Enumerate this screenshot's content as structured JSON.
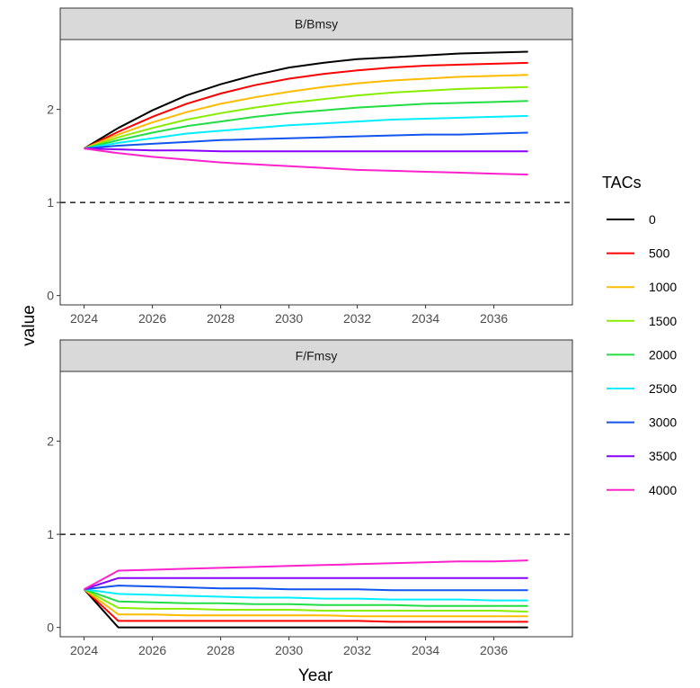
{
  "chart_data": {
    "type": "line",
    "xlabel": "Year",
    "ylabel": "value",
    "legend_title": "TACs",
    "legend_placement": "right",
    "xlim": [
      2023.3,
      2038.3
    ],
    "ylim": [
      -0.1,
      2.75
    ],
    "x_ticks": [
      "2024",
      "2026",
      "2028",
      "2030",
      "2032",
      "2034",
      "2036"
    ],
    "y_ticks": [
      "0",
      "1",
      "2"
    ],
    "x": [
      2024,
      2025,
      2026,
      2027,
      2028,
      2029,
      2030,
      2031,
      2032,
      2033,
      2034,
      2035,
      2036,
      2037
    ],
    "reference_line": 1,
    "panels": [
      {
        "title": "B/Bmsy",
        "series": [
          {
            "name": "0",
            "color": "#000000",
            "values": [
              1.58,
              1.8,
              1.99,
              2.15,
              2.27,
              2.37,
              2.45,
              2.5,
              2.54,
              2.56,
              2.58,
              2.6,
              2.61,
              2.62
            ]
          },
          {
            "name": "500",
            "color": "#ff0000",
            "values": [
              1.58,
              1.76,
              1.92,
              2.06,
              2.17,
              2.26,
              2.33,
              2.38,
              2.42,
              2.45,
              2.47,
              2.48,
              2.49,
              2.5
            ]
          },
          {
            "name": "1000",
            "color": "#ffbb00",
            "values": [
              1.58,
              1.73,
              1.86,
              1.97,
              2.06,
              2.13,
              2.19,
              2.24,
              2.28,
              2.31,
              2.33,
              2.35,
              2.36,
              2.37
            ]
          },
          {
            "name": "1500",
            "color": "#88ee00",
            "values": [
              1.58,
              1.7,
              1.8,
              1.89,
              1.96,
              2.02,
              2.07,
              2.11,
              2.15,
              2.18,
              2.2,
              2.22,
              2.23,
              2.24
            ]
          },
          {
            "name": "2000",
            "color": "#22dd44",
            "values": [
              1.58,
              1.67,
              1.75,
              1.82,
              1.87,
              1.92,
              1.96,
              1.99,
              2.02,
              2.04,
              2.06,
              2.07,
              2.08,
              2.09
            ]
          },
          {
            "name": "2500",
            "color": "#00eeff",
            "values": [
              1.58,
              1.64,
              1.69,
              1.74,
              1.77,
              1.8,
              1.83,
              1.85,
              1.87,
              1.89,
              1.9,
              1.91,
              1.92,
              1.93
            ]
          },
          {
            "name": "3000",
            "color": "#1155ee",
            "values": [
              1.58,
              1.61,
              1.63,
              1.65,
              1.67,
              1.68,
              1.69,
              1.7,
              1.71,
              1.72,
              1.73,
              1.73,
              1.74,
              1.75
            ]
          },
          {
            "name": "3500",
            "color": "#8800ff",
            "values": [
              1.58,
              1.57,
              1.56,
              1.56,
              1.55,
              1.55,
              1.55,
              1.55,
              1.55,
              1.55,
              1.55,
              1.55,
              1.55,
              1.55
            ]
          },
          {
            "name": "4000",
            "color": "#ff22cc",
            "values": [
              1.58,
              1.53,
              1.49,
              1.46,
              1.43,
              1.41,
              1.39,
              1.37,
              1.35,
              1.34,
              1.33,
              1.32,
              1.31,
              1.3
            ]
          }
        ]
      },
      {
        "title": "F/Fmsy",
        "series": [
          {
            "name": "0",
            "color": "#000000",
            "values": [
              0.41,
              0.0,
              0.0,
              0.0,
              0.0,
              0.0,
              0.0,
              0.0,
              0.0,
              0.0,
              0.0,
              0.0,
              0.0,
              0.0
            ]
          },
          {
            "name": "500",
            "color": "#ff0000",
            "values": [
              0.41,
              0.07,
              0.07,
              0.07,
              0.07,
              0.07,
              0.07,
              0.07,
              0.07,
              0.06,
              0.06,
              0.06,
              0.06,
              0.06
            ]
          },
          {
            "name": "1000",
            "color": "#ffbb00",
            "values": [
              0.41,
              0.14,
              0.14,
              0.13,
              0.13,
              0.13,
              0.13,
              0.13,
              0.12,
              0.12,
              0.12,
              0.12,
              0.12,
              0.12
            ]
          },
          {
            "name": "1500",
            "color": "#88ee00",
            "values": [
              0.41,
              0.21,
              0.2,
              0.2,
              0.19,
              0.19,
              0.19,
              0.18,
              0.18,
              0.18,
              0.18,
              0.18,
              0.18,
              0.17
            ]
          },
          {
            "name": "2000",
            "color": "#22dd44",
            "values": [
              0.41,
              0.28,
              0.27,
              0.26,
              0.26,
              0.25,
              0.25,
              0.24,
              0.24,
              0.24,
              0.23,
              0.23,
              0.23,
              0.23
            ]
          },
          {
            "name": "2500",
            "color": "#00eeff",
            "values": [
              0.41,
              0.36,
              0.35,
              0.34,
              0.33,
              0.32,
              0.32,
              0.31,
              0.31,
              0.3,
              0.3,
              0.3,
              0.29,
              0.29
            ]
          },
          {
            "name": "3000",
            "color": "#1155ee",
            "values": [
              0.41,
              0.45,
              0.44,
              0.43,
              0.42,
              0.42,
              0.41,
              0.41,
              0.41,
              0.4,
              0.4,
              0.4,
              0.4,
              0.4
            ]
          },
          {
            "name": "3500",
            "color": "#8800ff",
            "values": [
              0.41,
              0.53,
              0.53,
              0.53,
              0.53,
              0.53,
              0.53,
              0.53,
              0.53,
              0.53,
              0.53,
              0.53,
              0.53,
              0.53
            ]
          },
          {
            "name": "4000",
            "color": "#ff22cc",
            "values": [
              0.41,
              0.61,
              0.62,
              0.63,
              0.64,
              0.65,
              0.66,
              0.67,
              0.68,
              0.69,
              0.7,
              0.71,
              0.71,
              0.72
            ]
          }
        ]
      }
    ]
  }
}
